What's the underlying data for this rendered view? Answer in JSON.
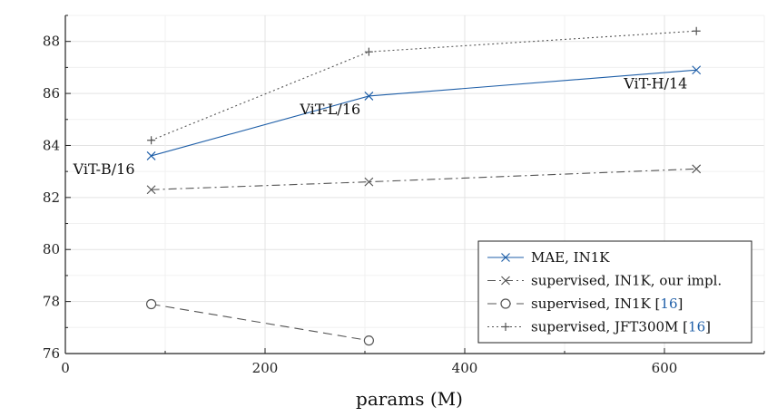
{
  "chart_data": {
    "type": "line",
    "title": "",
    "xlabel": "params (M)",
    "ylabel": "",
    "xlim": [
      0,
      700
    ],
    "ylim": [
      76,
      89
    ],
    "xticks": [
      0,
      200,
      400,
      600
    ],
    "yticks": [
      76,
      78,
      80,
      82,
      84,
      86,
      88
    ],
    "grid": true,
    "legend_position": "bottom-right",
    "series": [
      {
        "name": "MAE, IN1K",
        "name_parts": [
          "MAE, IN1K"
        ],
        "x": [
          86,
          304,
          632
        ],
        "values": [
          83.6,
          85.9,
          86.9
        ],
        "color": "#1f5fa8",
        "dash": "solid",
        "marker": "x"
      },
      {
        "name": "supervised, IN1K, our impl.",
        "name_parts": [
          "supervised, IN1K, our impl."
        ],
        "x": [
          86,
          304,
          632
        ],
        "values": [
          82.3,
          82.6,
          83.1
        ],
        "color": "#555555",
        "dash": "dashdot",
        "marker": "x"
      },
      {
        "name": "supervised, IN1K [16]",
        "name_parts": [
          "supervised, IN1K [",
          "16",
          "]"
        ],
        "x": [
          86,
          304
        ],
        "values": [
          77.9,
          76.5
        ],
        "color": "#555555",
        "dash": "dashed",
        "marker": "o"
      },
      {
        "name": "supervised, JFT300M [16]",
        "name_parts": [
          "supervised, JFT300M [",
          "16",
          "]"
        ],
        "x": [
          86,
          304,
          632
        ],
        "values": [
          84.2,
          87.6,
          88.4
        ],
        "color": "#555555",
        "dash": "dotted",
        "marker": "+"
      }
    ],
    "annotations": [
      {
        "text": "ViT-B/16",
        "x": 86,
        "y": 83.6
      },
      {
        "text": "ViT-L/16",
        "x": 304,
        "y": 85.9
      },
      {
        "text": "ViT-H/14",
        "x": 632,
        "y": 86.9
      }
    ]
  }
}
